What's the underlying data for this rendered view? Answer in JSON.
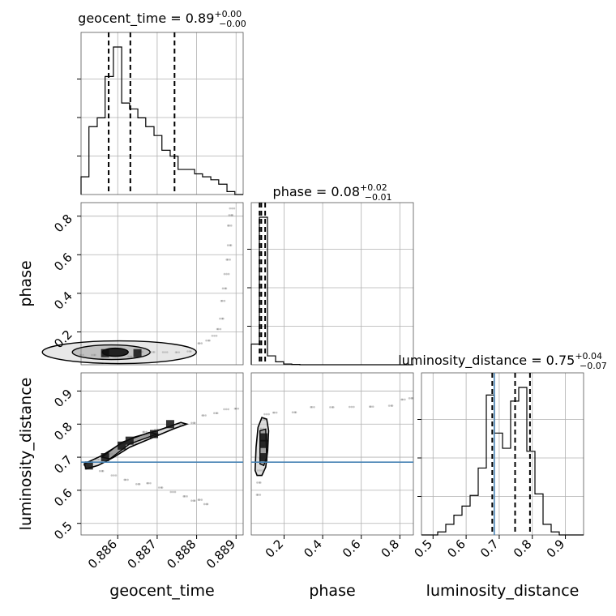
{
  "chart_data": {
    "type": "corner",
    "parameters": [
      "geocent_time",
      "phase",
      "luminosity_distance"
    ],
    "titles": {
      "geocent_time": {
        "name": "geocent_time",
        "median": "0.89",
        "plus": "+0.00",
        "minus": "−0.00"
      },
      "phase": {
        "name": "phase",
        "median": "0.08",
        "plus": "+0.02",
        "minus": "−0.01"
      },
      "luminosity_distance": {
        "name": "luminosity_distance",
        "median": "0.75",
        "plus": "+0.04",
        "minus": "−0.07"
      }
    },
    "axis_labels": {
      "x": [
        "geocent_time",
        "phase",
        "luminosity_distance"
      ],
      "y": [
        "phase",
        "luminosity_distance"
      ]
    },
    "ranges": {
      "geocent_time": [
        0.88507,
        0.88918
      ],
      "phase": [
        0.03,
        0.87
      ],
      "luminosity_distance": [
        0.465,
        0.955
      ]
    },
    "ticks": {
      "geocent_time": [
        "0.886",
        "0.887",
        "0.888",
        "0.889"
      ],
      "phase": [
        "0.2",
        "0.4",
        "0.6",
        "0.8"
      ],
      "luminosity_distance": [
        "0.5",
        "0.6",
        "0.7",
        "0.8",
        "0.9"
      ]
    },
    "truths": {
      "luminosity_distance": 0.685
    },
    "quantiles": {
      "geocent_time": [
        0.88577,
        0.88632,
        0.88744
      ],
      "phase": [
        0.073,
        0.082,
        0.102
      ],
      "luminosity_distance": [
        0.679,
        0.748,
        0.793
      ]
    },
    "histograms": {
      "geocent_time": {
        "edges": [
          0.88507,
          0.88527,
          0.88548,
          0.88568,
          0.88589,
          0.8861,
          0.8863,
          0.88651,
          0.88671,
          0.88692,
          0.88712,
          0.88733,
          0.88753,
          0.88774,
          0.88795,
          0.88815,
          0.88836,
          0.88856,
          0.88877,
          0.88897,
          0.88918
        ],
        "counts": [
          0.12,
          0.46,
          0.52,
          0.8,
          1.0,
          0.62,
          0.58,
          0.52,
          0.46,
          0.4,
          0.3,
          0.26,
          0.17,
          0.17,
          0.14,
          0.12,
          0.1,
          0.07,
          0.02,
          0.0
        ]
      },
      "phase": {
        "edges": [
          0.03,
          0.072,
          0.114,
          0.156,
          0.198,
          0.24,
          0.282,
          0.324,
          0.366,
          0.408,
          0.45,
          0.492,
          0.534,
          0.576,
          0.618,
          0.66,
          0.702,
          0.744,
          0.786,
          0.828,
          0.87
        ],
        "counts": [
          0.14,
          1.0,
          0.06,
          0.02,
          0.005,
          0.002,
          0,
          0,
          0,
          0,
          0,
          0,
          0,
          0,
          0,
          0,
          0,
          0,
          0,
          0
        ]
      },
      "luminosity_distance": {
        "edges": [
          0.465,
          0.4895,
          0.514,
          0.5385,
          0.563,
          0.5875,
          0.612,
          0.6365,
          0.661,
          0.6855,
          0.71,
          0.7345,
          0.759,
          0.7835,
          0.808,
          0.8325,
          0.857,
          0.8815,
          0.906,
          0.9305,
          0.955
        ],
        "counts": [
          0,
          0,
          0.02,
          0.07,
          0.13,
          0.19,
          0.26,
          0.44,
          0.92,
          0.67,
          0.57,
          0.88,
          0.97,
          0.55,
          0.27,
          0.07,
          0.02,
          0,
          0,
          0
        ]
      }
    },
    "scatter_trails": {
      "phase_vs_geocent_time": [
        [
          0.8851,
          0.07
        ],
        [
          0.8854,
          0.075
        ],
        [
          0.8857,
          0.08
        ],
        [
          0.886,
          0.085
        ],
        [
          0.8863,
          0.083
        ],
        [
          0.8866,
          0.086
        ],
        [
          0.8869,
          0.09
        ],
        [
          0.8872,
          0.095
        ],
        [
          0.8875,
          0.1
        ],
        [
          0.8878,
          0.11
        ],
        [
          0.8881,
          0.13
        ],
        [
          0.8883,
          0.15
        ],
        [
          0.88845,
          0.18
        ],
        [
          0.88855,
          0.22
        ],
        [
          0.88862,
          0.28
        ],
        [
          0.88868,
          0.35
        ],
        [
          0.88872,
          0.42
        ],
        [
          0.88876,
          0.5
        ],
        [
          0.88879,
          0.58
        ],
        [
          0.88882,
          0.66
        ],
        [
          0.88885,
          0.74
        ],
        [
          0.88888,
          0.8
        ],
        [
          0.8889,
          0.84
        ]
      ],
      "distance_vs_geocent_time_upper": [
        [
          0.8852,
          0.67
        ],
        [
          0.8855,
          0.69
        ],
        [
          0.8858,
          0.71
        ],
        [
          0.8861,
          0.73
        ],
        [
          0.8864,
          0.75
        ],
        [
          0.8867,
          0.77
        ],
        [
          0.887,
          0.78
        ],
        [
          0.8873,
          0.79
        ],
        [
          0.8876,
          0.8
        ],
        [
          0.8879,
          0.81
        ],
        [
          0.8882,
          0.82
        ],
        [
          0.8885,
          0.83
        ],
        [
          0.88875,
          0.845
        ],
        [
          0.889,
          0.85
        ]
      ],
      "distance_vs_geocent_time_lower": [
        [
          0.8853,
          0.665
        ],
        [
          0.8856,
          0.655
        ],
        [
          0.8859,
          0.645
        ],
        [
          0.8862,
          0.635
        ],
        [
          0.8865,
          0.625
        ],
        [
          0.8868,
          0.615
        ],
        [
          0.8871,
          0.605
        ],
        [
          0.8874,
          0.595
        ],
        [
          0.8877,
          0.585
        ],
        [
          0.8879,
          0.575
        ],
        [
          0.8881,
          0.565
        ],
        [
          0.88825,
          0.555
        ]
      ],
      "distance_vs_phase": [
        [
          0.07,
          0.58
        ],
        [
          0.072,
          0.62
        ],
        [
          0.075,
          0.66
        ],
        [
          0.078,
          0.7
        ],
        [
          0.082,
          0.74
        ],
        [
          0.088,
          0.78
        ],
        [
          0.095,
          0.81
        ],
        [
          0.11,
          0.83
        ],
        [
          0.15,
          0.838
        ],
        [
          0.25,
          0.842
        ],
        [
          0.35,
          0.845
        ],
        [
          0.45,
          0.848
        ],
        [
          0.55,
          0.852
        ],
        [
          0.65,
          0.856
        ],
        [
          0.75,
          0.862
        ],
        [
          0.82,
          0.868
        ],
        [
          0.86,
          0.875
        ]
      ]
    },
    "density_blocks": {
      "phase_vs_geocent_time": [
        [
          0.88604,
          0.095
        ],
        [
          0.88568,
          0.09
        ],
        [
          0.8865,
          0.09
        ]
      ],
      "distance_vs_geocent_time": [
        [
          0.88527,
          0.675
        ],
        [
          0.88568,
          0.7
        ],
        [
          0.8861,
          0.735
        ],
        [
          0.8863,
          0.75
        ],
        [
          0.88692,
          0.77
        ],
        [
          0.88733,
          0.8
        ]
      ],
      "distance_vs_phase": [
        [
          0.093,
          0.76
        ],
        [
          0.093,
          0.74
        ],
        [
          0.093,
          0.7
        ]
      ]
    }
  }
}
